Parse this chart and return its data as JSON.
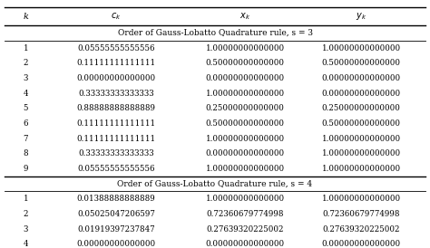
{
  "headers": [
    "k",
    "c_k",
    "x_k",
    "y_k"
  ],
  "header_display": [
    "k",
    "cₖ",
    "xₖ",
    "yₖ"
  ],
  "section1_label": "Order of Gauss-Lobatto Quadrature rule, s = 3",
  "section2_label": "Order of Gauss-Lobatto Quadrature rule, s = 4",
  "section1_rows": [
    [
      "1",
      "0.05555555555556",
      "1.00000000000000",
      "1.00000000000000"
    ],
    [
      "2",
      "0.11111111111111",
      "0.50000000000000",
      "0.50000000000000"
    ],
    [
      "3",
      "0.00000000000000",
      "0.00000000000000",
      "0.00000000000000"
    ],
    [
      "4",
      "0.33333333333333",
      "1.00000000000000",
      "0.00000000000000"
    ],
    [
      "5",
      "0.88888888888889",
      "0.25000000000000",
      "0.25000000000000"
    ],
    [
      "6",
      "0.11111111111111",
      "0.50000000000000",
      "0.50000000000000"
    ],
    [
      "7",
      "0.11111111111111",
      "1.00000000000000",
      "1.00000000000000"
    ],
    [
      "8",
      "0.33333333333333",
      "0.00000000000000",
      "1.00000000000000"
    ],
    [
      "9",
      "0.05555555555556",
      "1.00000000000000",
      "1.00000000000000"
    ]
  ],
  "section2_rows": [
    [
      "1",
      "0.01388888888889",
      "1.00000000000000",
      "1.00000000000000"
    ],
    [
      "2",
      "0.05025047206597",
      "0.72360679774998",
      "0.72360679774998"
    ],
    [
      "3",
      "0.01919397237847",
      "0.27639320225002",
      "0.27639320225002"
    ],
    [
      "4",
      "0.00000000000000",
      "0.00000000000000",
      "0.00000000000000"
    ]
  ],
  "bg_color": "#f0f0f0",
  "header_bg": "#d0d0d0",
  "font_size": 6.5,
  "title_font_size": 6.5
}
